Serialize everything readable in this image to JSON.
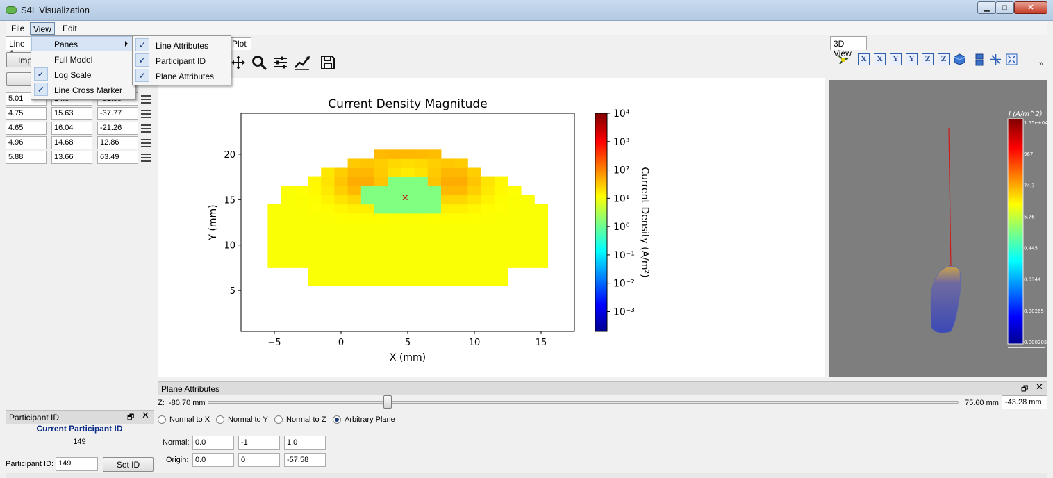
{
  "window": {
    "title": "S4L Visualization",
    "min_glyph": "▁",
    "max_glyph": "□",
    "close_glyph": "✕"
  },
  "menubar": {
    "file": "File",
    "view": "View",
    "edit": "Edit"
  },
  "view_menu": {
    "items": [
      {
        "label": "Panes",
        "checked": false,
        "submenu": true
      },
      {
        "label": "Full Model",
        "checked": false
      },
      {
        "label": "Log Scale",
        "checked": true
      },
      {
        "label": "Line Cross Marker",
        "checked": true
      }
    ],
    "panes_submenu": [
      {
        "label": "Line Attributes",
        "checked": true
      },
      {
        "label": "Participant ID",
        "checked": true
      },
      {
        "label": "Plane Attributes",
        "checked": true
      }
    ]
  },
  "line_attributes": {
    "tab_label": "Line A",
    "import_button": "Imp",
    "rows": [
      [
        "5.01",
        "14.0",
        "-51.99"
      ],
      [
        "4.75",
        "15.63",
        "-37.77"
      ],
      [
        "4.65",
        "16.04",
        "-21.26"
      ],
      [
        "4.96",
        "14.68",
        "12.86"
      ],
      [
        "5.88",
        "13.66",
        "63.49"
      ]
    ]
  },
  "participant": {
    "header": "Participant ID",
    "current_label": "Current Participant ID",
    "current_value": "149",
    "id_label": "Participant ID:",
    "id_value": "149",
    "set_button": "Set ID"
  },
  "plot_tab": "Plot",
  "toolbar_icons": [
    "move-icon",
    "zoom-icon",
    "configure-icon",
    "edit-curves-icon",
    "save-icon"
  ],
  "chart_data": {
    "type": "heatmap",
    "title": "Current Density Magnitude",
    "xlabel": "X (mm)",
    "ylabel": "Y (mm)",
    "xlim": [
      -7.5,
      17.5
    ],
    "ylim": [
      0.5,
      24.5
    ],
    "xticks": [
      "−5",
      "0",
      "5",
      "10",
      "15"
    ],
    "xtick_values": [
      -5,
      0,
      5,
      10,
      15
    ],
    "yticks": [
      "5",
      "10",
      "15",
      "20"
    ],
    "ytick_values": [
      5,
      10,
      15,
      20
    ],
    "marker": {
      "x": 4.8,
      "y": 15.3,
      "symbol": "×"
    },
    "colorbar": {
      "label": "Current Density (A/m²)",
      "ticks": [
        "10⁴",
        "10³",
        "10²",
        "10¹",
        "10⁰",
        "10⁻¹",
        "10⁻²",
        "10⁻³"
      ],
      "scale": "log",
      "range_exponent": [
        -3.7,
        4.0
      ]
    },
    "colormap": "jet"
  },
  "view3d": {
    "tab": "3D View",
    "axis_buttons": [
      "X",
      "X",
      "Y",
      "Y",
      "Z",
      "Z"
    ],
    "more": "»",
    "legend_title": "J (A/m^2)",
    "legend_ticks": [
      "1.55e+04",
      "967",
      "74.7",
      "5.76",
      "0.445",
      "0.0344",
      "0.00265",
      "0.000205"
    ]
  },
  "plane_attributes": {
    "header": "Plane Attributes",
    "z_label": "Z:",
    "z_min": "-80.70 mm",
    "z_max": "75.60 mm",
    "z_value": "-43.28 mm",
    "slider_fraction": 0.24,
    "radios": [
      {
        "label": "Normal to X",
        "selected": false
      },
      {
        "label": "Normal to Y",
        "selected": false
      },
      {
        "label": "Normal to Z",
        "selected": false
      },
      {
        "label": "Arbitrary Plane",
        "selected": true
      }
    ],
    "normal_label": "Normal:",
    "normal": [
      "0.0",
      "-1",
      "1.0"
    ],
    "origin_label": "Origin:",
    "origin": [
      "0.0",
      "0",
      "-57.58"
    ]
  }
}
